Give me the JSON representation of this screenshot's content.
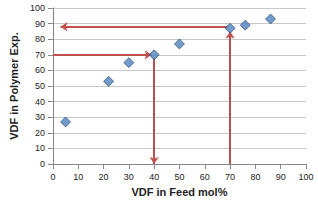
{
  "chart_data": {
    "type": "scatter",
    "x_label": "VDF in Feed mol%",
    "y_label": "VDF in Polymer Exp.",
    "x": [
      5,
      22,
      30,
      40,
      50,
      70,
      76,
      86
    ],
    "values": [
      27,
      53,
      65,
      70,
      77,
      87,
      89,
      93
    ],
    "color": "#4f81bd",
    "marker": "diamond",
    "xlim": [
      0,
      100
    ],
    "xticks": [
      0,
      10,
      20,
      30,
      40,
      50,
      60,
      70,
      80,
      90,
      100
    ],
    "ylim": [
      0,
      100
    ],
    "yticks": [
      0,
      10,
      20,
      30,
      40,
      50,
      60,
      70,
      80,
      90,
      100
    ],
    "grid": true,
    "arrows": [
      {
        "from": [
          0,
          70
        ],
        "to": [
          39,
          70
        ]
      },
      {
        "from": [
          40,
          68
        ],
        "to": [
          40,
          0
        ]
      },
      {
        "from": [
          70,
          0
        ],
        "to": [
          70,
          85
        ]
      },
      {
        "from": [
          69,
          88
        ],
        "to": [
          3,
          88
        ]
      }
    ]
  }
}
